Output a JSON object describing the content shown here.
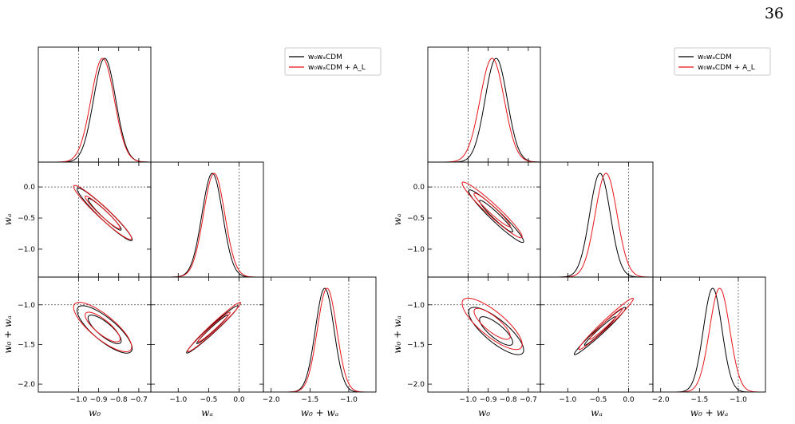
{
  "page_number": "36",
  "colors": {
    "black_series": "#000000",
    "red_series": "#e8141a",
    "reference_line": "#444444"
  },
  "chart_data": [
    {
      "type": "corner-plot",
      "panel": "left",
      "parameters": [
        {
          "id": "w0",
          "label": "w₀",
          "range": [
            -1.2,
            -0.64
          ],
          "ticks": [
            -1.0,
            -0.9,
            -0.8,
            -0.7
          ],
          "tick_labels": [
            "−1.0",
            "−0.9",
            "−0.8",
            "−0.7"
          ],
          "reference": -1.0
        },
        {
          "id": "wa",
          "label": "wₐ",
          "range": [
            -1.45,
            0.4
          ],
          "ticks": [
            -1.0,
            -0.5,
            0.0
          ],
          "tick_labels": [
            "−1.0",
            "−0.5",
            "0.0"
          ],
          "reference": 0.0
        },
        {
          "id": "w0wa",
          "label": "w₀ + wₐ",
          "range": [
            -2.1,
            -0.65
          ],
          "ticks": [
            -2.0,
            -1.5,
            -1.0
          ],
          "tick_labels": [
            "−2.0",
            "−1.5",
            "−1.0"
          ],
          "reference": -1.0
        }
      ],
      "legend": [
        {
          "label": "w₀wₐCDM",
          "color": "#000000"
        },
        {
          "label": "w₀wₐCDM + A_L",
          "color": "#e8141a"
        }
      ],
      "legend_position": "top-right",
      "series": [
        {
          "name": "w₀wₐCDM",
          "color": "#000000",
          "marginals": {
            "w0": {
              "mean": -0.87,
              "sd": 0.055
            },
            "wa": {
              "mean": -0.44,
              "sd": 0.17
            },
            "w0wa": {
              "mean": -1.31,
              "sd": 0.12
            }
          },
          "ellipses": {
            "w0-wa": {
              "center": [
                -0.87,
                -0.44
              ],
              "rho": -0.96,
              "sigma_scale": [
                1.5,
                2.49
              ]
            },
            "w0-w0wa": {
              "center": [
                -0.87,
                -1.31
              ],
              "rho": -0.8,
              "sigma_scale": [
                1.5,
                2.49
              ]
            },
            "wa-w0wa": {
              "center": [
                -0.44,
                -1.31
              ],
              "rho": 0.98,
              "sigma_scale": [
                1.5,
                2.49
              ]
            }
          }
        },
        {
          "name": "w₀wₐCDM + A_L",
          "color": "#e8141a",
          "marginals": {
            "w0": {
              "mean": -0.88,
              "sd": 0.058
            },
            "wa": {
              "mean": -0.41,
              "sd": 0.175
            },
            "w0wa": {
              "mean": -1.28,
              "sd": 0.125
            }
          },
          "ellipses": {
            "w0-wa": {
              "center": [
                -0.88,
                -0.41
              ],
              "rho": -0.96,
              "sigma_scale": [
                1.5,
                2.49
              ]
            },
            "w0-w0wa": {
              "center": [
                -0.88,
                -1.28
              ],
              "rho": -0.8,
              "sigma_scale": [
                1.5,
                2.49
              ]
            },
            "wa-w0wa": {
              "center": [
                -0.41,
                -1.28
              ],
              "rho": 0.98,
              "sigma_scale": [
                1.5,
                2.49
              ]
            }
          }
        }
      ]
    },
    {
      "type": "corner-plot",
      "panel": "right",
      "parameters": [
        {
          "id": "w0",
          "label": "w₀",
          "range": [
            -1.2,
            -0.64
          ],
          "ticks": [
            -1.0,
            -0.9,
            -0.8,
            -0.7
          ],
          "tick_labels": [
            "−1.0",
            "−0.9",
            "−0.8",
            "−0.7"
          ],
          "reference": -1.0
        },
        {
          "id": "wa",
          "label": "wₐ",
          "range": [
            -1.45,
            0.4
          ],
          "ticks": [
            -1.0,
            -0.5,
            0.0
          ],
          "tick_labels": [
            "−1.0",
            "−0.5",
            "0.0"
          ],
          "reference": 0.0
        },
        {
          "id": "w0wa",
          "label": "w₀ + wₐ",
          "range": [
            -2.1,
            -0.65
          ],
          "ticks": [
            -2.0,
            -1.5,
            -1.0
          ],
          "tick_labels": [
            "−2.0",
            "−1.5",
            "−1.0"
          ],
          "reference": -1.0
        }
      ],
      "legend": [
        {
          "label": "w₀wₐCDM",
          "color": "#000000"
        },
        {
          "label": "w₀wₐCDM + A_L",
          "color": "#e8141a"
        }
      ],
      "legend_position": "top-right",
      "series": [
        {
          "name": "w₀wₐCDM",
          "color": "#000000",
          "marginals": {
            "w0": {
              "mean": -0.86,
              "sd": 0.055
            },
            "wa": {
              "mean": -0.47,
              "sd": 0.17
            },
            "w0wa": {
              "mean": -1.33,
              "sd": 0.12
            }
          },
          "ellipses": {
            "w0-wa": {
              "center": [
                -0.86,
                -0.47
              ],
              "rho": -0.96,
              "sigma_scale": [
                1.5,
                2.49
              ]
            },
            "w0-w0wa": {
              "center": [
                -0.86,
                -1.33
              ],
              "rho": -0.8,
              "sigma_scale": [
                1.5,
                2.49
              ]
            },
            "wa-w0wa": {
              "center": [
                -0.47,
                -1.33
              ],
              "rho": 0.98,
              "sigma_scale": [
                1.5,
                2.49
              ]
            }
          }
        },
        {
          "name": "w₀wₐCDM + A_L",
          "color": "#e8141a",
          "marginals": {
            "w0": {
              "mean": -0.88,
              "sd": 0.06
            },
            "wa": {
              "mean": -0.37,
              "sd": 0.18
            },
            "w0wa": {
              "mean": -1.24,
              "sd": 0.13
            }
          },
          "ellipses": {
            "w0-wa": {
              "center": [
                -0.88,
                -0.37
              ],
              "rho": -0.96,
              "sigma_scale": [
                1.5,
                2.49
              ]
            },
            "w0-w0wa": {
              "center": [
                -0.88,
                -1.24
              ],
              "rho": -0.8,
              "sigma_scale": [
                1.5,
                2.49
              ]
            },
            "wa-w0wa": {
              "center": [
                -0.37,
                -1.24
              ],
              "rho": 0.98,
              "sigma_scale": [
                1.5,
                2.49
              ]
            }
          }
        }
      ]
    }
  ]
}
